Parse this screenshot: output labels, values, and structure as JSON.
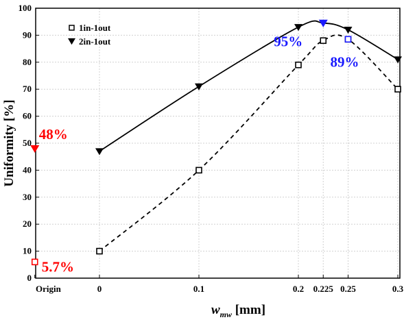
{
  "chart_data": {
    "type": "line",
    "xlabel_main": "w",
    "xlabel_sub": "mw",
    "xlabel_unit": " [mm]",
    "ylabel": "Uniformity [%]",
    "ylim": [
      0,
      100
    ],
    "yticks": [
      "0",
      "10",
      "20",
      "30",
      "40",
      "50",
      "60",
      "70",
      "80",
      "90",
      "100"
    ],
    "xticks": [
      "Origin",
      "0",
      "0.1",
      "0.2",
      "0.225",
      "0.25",
      "0.3"
    ],
    "xtick_values": [
      -0.065,
      0,
      0.1,
      0.2,
      0.225,
      0.25,
      0.3
    ],
    "grid": true,
    "legend_position": "top-left",
    "series": [
      {
        "name": "1in-1out",
        "marker": "open-square",
        "line_style": "dashed",
        "x": [
          0,
          0.1,
          0.2,
          0.225,
          0.25,
          0.3
        ],
        "values": [
          10,
          40,
          79,
          88,
          88.5,
          70
        ]
      },
      {
        "name": "2in-1out",
        "marker": "filled-triangle-down",
        "line_style": "solid",
        "x": [
          0,
          0.1,
          0.2,
          0.225,
          0.25,
          0.3
        ],
        "values": [
          47,
          71,
          93,
          94.5,
          92,
          81
        ]
      }
    ],
    "highlighted_points": [
      {
        "x": -0.065,
        "y": 48,
        "marker": "filled-triangle-down",
        "color": "#ff0000",
        "label": "48%"
      },
      {
        "x": -0.065,
        "y": 6,
        "marker": "open-square",
        "color": "#ff0000",
        "label": "5.7%"
      },
      {
        "x": 0.225,
        "y": 94.5,
        "marker": "filled-triangle-down",
        "color": "#1a1aff",
        "label": "95%"
      },
      {
        "x": 0.25,
        "y": 88.5,
        "marker": "open-square",
        "color": "#1a1aff",
        "label": "89%"
      }
    ],
    "colors": {
      "series": "#000000",
      "red": "#ff0000",
      "blue": "#1a1aff"
    }
  }
}
